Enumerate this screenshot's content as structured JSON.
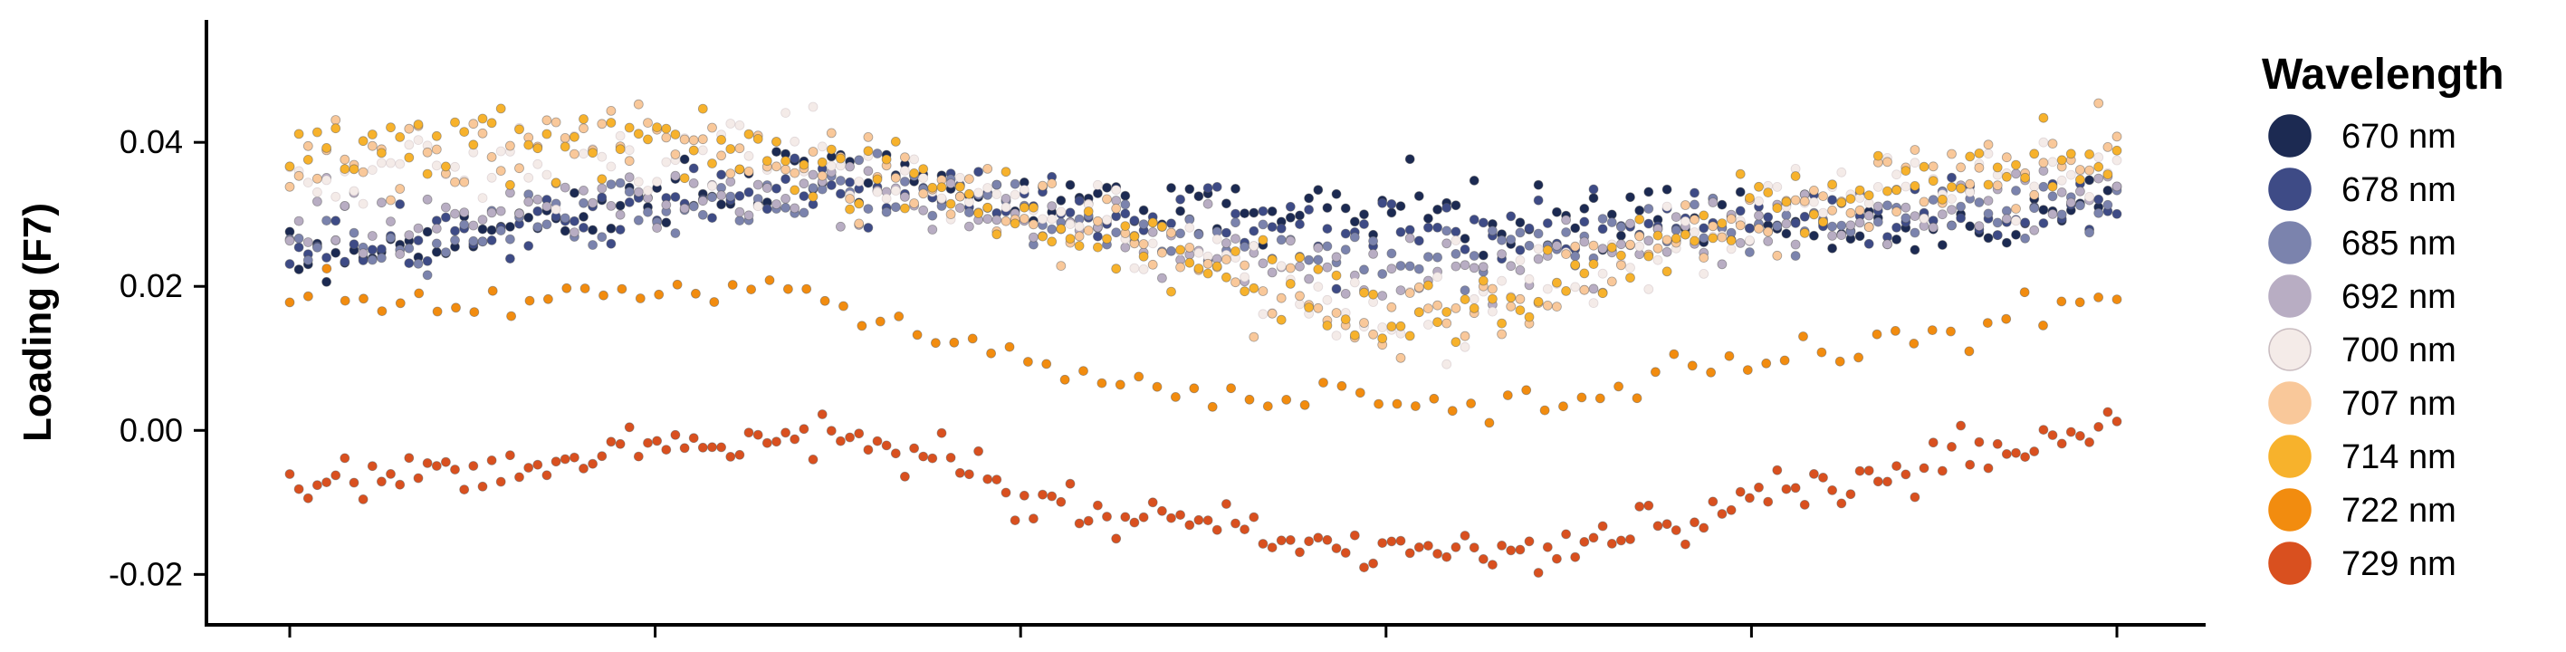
{
  "chart_data": {
    "type": "scatter",
    "title": "",
    "xlabel": "",
    "ylabel": "Loading (F7)",
    "xlim": [
      0,
      1
    ],
    "ylim": [
      -0.027,
      0.057
    ],
    "yticks": [
      -0.02,
      0.0,
      0.02,
      0.04
    ],
    "ytick_labels": [
      "-0.02",
      "0.00",
      "0.02",
      "0.04"
    ],
    "xticks": [
      0,
      0.2,
      0.4,
      0.6,
      0.8,
      1.0
    ],
    "xtick_labels": [],
    "grid": false,
    "legend": {
      "title": "Wavelength",
      "placement": "right"
    },
    "series": [
      {
        "name": "670 nm",
        "color": "#1c2a52",
        "points_per_series": 200,
        "trend": [
          [
            0,
            0.024
          ],
          [
            0.1,
            0.027
          ],
          [
            0.2,
            0.033
          ],
          [
            0.3,
            0.035
          ],
          [
            0.4,
            0.033
          ],
          [
            0.5,
            0.031
          ],
          [
            0.6,
            0.03
          ],
          [
            0.7,
            0.029
          ],
          [
            0.8,
            0.029
          ],
          [
            0.9,
            0.028
          ],
          [
            1.0,
            0.031
          ]
        ],
        "spread": 0.004
      },
      {
        "name": "678 nm",
        "color": "#3e4b86",
        "points_per_series": 200,
        "trend": [
          [
            0,
            0.025
          ],
          [
            0.1,
            0.027
          ],
          [
            0.2,
            0.032
          ],
          [
            0.3,
            0.034
          ],
          [
            0.4,
            0.032
          ],
          [
            0.5,
            0.029
          ],
          [
            0.6,
            0.028
          ],
          [
            0.7,
            0.028
          ],
          [
            0.8,
            0.029
          ],
          [
            0.9,
            0.029
          ],
          [
            1.0,
            0.032
          ]
        ],
        "spread": 0.004
      },
      {
        "name": "685 nm",
        "color": "#7b83ad",
        "points_per_series": 200,
        "trend": [
          [
            0,
            0.026
          ],
          [
            0.1,
            0.028
          ],
          [
            0.2,
            0.031
          ],
          [
            0.3,
            0.033
          ],
          [
            0.4,
            0.031
          ],
          [
            0.5,
            0.027
          ],
          [
            0.6,
            0.024
          ],
          [
            0.7,
            0.026
          ],
          [
            0.8,
            0.028
          ],
          [
            0.9,
            0.03
          ],
          [
            1.0,
            0.033
          ]
        ],
        "spread": 0.004
      },
      {
        "name": "692 nm",
        "color": "#b8adc3",
        "points_per_series": 200,
        "trend": [
          [
            0,
            0.028
          ],
          [
            0.1,
            0.03
          ],
          [
            0.2,
            0.032
          ],
          [
            0.3,
            0.033
          ],
          [
            0.4,
            0.03
          ],
          [
            0.5,
            0.025
          ],
          [
            0.6,
            0.02
          ],
          [
            0.7,
            0.024
          ],
          [
            0.8,
            0.028
          ],
          [
            0.9,
            0.031
          ],
          [
            1.0,
            0.034
          ]
        ],
        "spread": 0.004
      },
      {
        "name": "700 nm",
        "color": "#f4ebe8",
        "points_per_series": 200,
        "trend": [
          [
            0,
            0.035
          ],
          [
            0.1,
            0.037
          ],
          [
            0.2,
            0.04
          ],
          [
            0.3,
            0.037
          ],
          [
            0.4,
            0.032
          ],
          [
            0.5,
            0.024
          ],
          [
            0.6,
            0.015
          ],
          [
            0.7,
            0.022
          ],
          [
            0.8,
            0.03
          ],
          [
            0.9,
            0.034
          ],
          [
            1.0,
            0.037
          ]
        ],
        "spread": 0.005
      },
      {
        "name": "707 nm",
        "color": "#f9c89a",
        "points_per_series": 200,
        "trend": [
          [
            0,
            0.037
          ],
          [
            0.1,
            0.038
          ],
          [
            0.2,
            0.041
          ],
          [
            0.3,
            0.036
          ],
          [
            0.4,
            0.031
          ],
          [
            0.5,
            0.023
          ],
          [
            0.6,
            0.014
          ],
          [
            0.7,
            0.021
          ],
          [
            0.8,
            0.03
          ],
          [
            0.9,
            0.035
          ],
          [
            1.0,
            0.038
          ]
        ],
        "spread": 0.005
      },
      {
        "name": "714 nm",
        "color": "#f7b22c",
        "points_per_series": 200,
        "trend": [
          [
            0,
            0.04
          ],
          [
            0.1,
            0.04
          ],
          [
            0.2,
            0.042
          ],
          [
            0.3,
            0.036
          ],
          [
            0.4,
            0.03
          ],
          [
            0.5,
            0.023
          ],
          [
            0.6,
            0.015
          ],
          [
            0.7,
            0.021
          ],
          [
            0.8,
            0.03
          ],
          [
            0.9,
            0.035
          ],
          [
            1.0,
            0.038
          ]
        ],
        "spread": 0.005
      },
      {
        "name": "722 nm",
        "color": "#f28c0f",
        "points_per_series": 100,
        "trend": [
          [
            0,
            0.019
          ],
          [
            0.1,
            0.018
          ],
          [
            0.2,
            0.021
          ],
          [
            0.3,
            0.017
          ],
          [
            0.4,
            0.01
          ],
          [
            0.5,
            0.005
          ],
          [
            0.6,
            0.003
          ],
          [
            0.7,
            0.004
          ],
          [
            0.8,
            0.01
          ],
          [
            0.9,
            0.014
          ],
          [
            1.0,
            0.019
          ]
        ],
        "spread": 0.003
      },
      {
        "name": "729 nm",
        "color": "#d9501f",
        "points_per_series": 200,
        "trend": [
          [
            0,
            -0.008
          ],
          [
            0.1,
            -0.006
          ],
          [
            0.2,
            -0.002
          ],
          [
            0.3,
            0.0
          ],
          [
            0.4,
            -0.008
          ],
          [
            0.5,
            -0.013
          ],
          [
            0.6,
            -0.017
          ],
          [
            0.7,
            -0.016
          ],
          [
            0.8,
            -0.01
          ],
          [
            0.9,
            -0.005
          ],
          [
            1.0,
            0.001
          ]
        ],
        "spread": 0.003
      }
    ]
  }
}
